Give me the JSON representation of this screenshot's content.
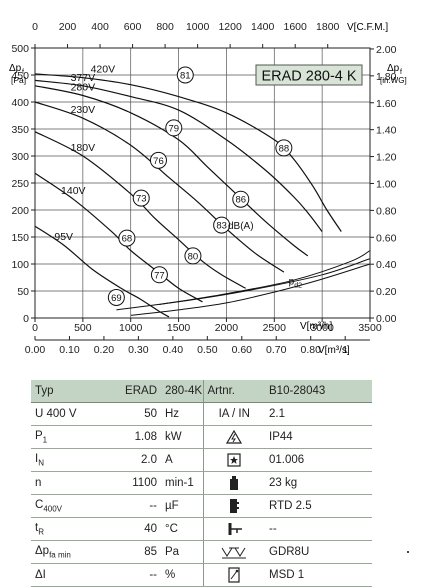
{
  "chart_data": {
    "type": "line",
    "title": "ERAD 280-4 K",
    "x_bottom": {
      "label": "V[m³/h]",
      "ticks": [
        0,
        500,
        1000,
        1500,
        2000,
        2500,
        3000,
        3500
      ],
      "tick_labels": [
        "0",
        "500",
        "1000",
        "1500",
        "2000",
        "2500",
        "3000",
        "3500"
      ],
      "range": [
        0,
        3500
      ]
    },
    "x_bottom2": {
      "label": "V[m³/s]",
      "ticks": [
        0,
        0.1,
        0.2,
        0.3,
        0.4,
        0.5,
        0.6,
        0.7,
        0.8,
        0.9
      ],
      "tick_labels": [
        "0.00",
        "0.10",
        "0.20",
        "0.30",
        "0.40",
        "0.50",
        "0.60",
        "0.70",
        "0.80",
        "1"
      ],
      "range": [
        0,
        0.972
      ]
    },
    "x_top": {
      "label": "V[C.F.M.]",
      "ticks": [
        0,
        200,
        400,
        600,
        800,
        1000,
        1200,
        1400,
        1600,
        1800
      ],
      "tick_labels": [
        "0",
        "200",
        "400",
        "600",
        "800",
        "1000",
        "1200",
        "1400",
        "1600",
        "1800"
      ],
      "range": [
        0,
        2060
      ]
    },
    "y_left": {
      "label_parts": [
        "Δp",
        "f",
        "[Pa]"
      ],
      "ticks": [
        0,
        50,
        100,
        150,
        200,
        250,
        300,
        350,
        400,
        450,
        500
      ],
      "tick_labels": [
        "0",
        "50",
        "100",
        "150",
        "200",
        "250",
        "300",
        "350",
        "400",
        "450",
        "500"
      ],
      "range": [
        0,
        500
      ]
    },
    "y_right": {
      "label_parts": [
        "Δp",
        "f",
        "[in.WG]"
      ],
      "ticks": [
        0,
        0.2,
        0.4,
        0.6,
        0.8,
        1.0,
        1.2,
        1.4,
        1.6,
        1.8,
        2.0
      ],
      "tick_labels": [
        "0.00",
        "0.20",
        "0.40",
        "0.60",
        "0.80",
        "1.00",
        "1.20",
        "1.40",
        "1.60",
        "1.80",
        "2.00"
      ],
      "range": [
        0,
        2.007
      ]
    },
    "grid": true,
    "series": [
      {
        "name": "420V",
        "x": [
          0,
          500,
          1000,
          1500,
          2000,
          2500,
          2700,
          2900,
          3050,
          3200
        ],
        "y": [
          452,
          445,
          432,
          410,
          380,
          330,
          295,
          245,
          200,
          160
        ]
      },
      {
        "name": "377V",
        "x": [
          0,
          500,
          1000,
          1500,
          2000,
          2400,
          2700,
          2850,
          3000
        ],
        "y": [
          440,
          430,
          410,
          385,
          330,
          275,
          225,
          195,
          160
        ]
      },
      {
        "name": "280V",
        "x": [
          0,
          500,
          1000,
          1500,
          1800,
          2100,
          2400,
          2700,
          2850
        ],
        "y": [
          430,
          412,
          380,
          330,
          280,
          230,
          180,
          135,
          115
        ]
      },
      {
        "name": "230V",
        "x": [
          0,
          500,
          1000,
          1400,
          1700,
          2000,
          2300,
          2600
        ],
        "y": [
          400,
          370,
          320,
          260,
          215,
          165,
          120,
          85
        ]
      },
      {
        "name": "180V",
        "x": [
          0,
          500,
          1000,
          1250,
          1500,
          1750,
          1950,
          2200
        ],
        "y": [
          345,
          300,
          230,
          185,
          145,
          105,
          80,
          55
        ]
      },
      {
        "name": "140V",
        "x": [
          0,
          400,
          800,
          1000,
          1250,
          1500,
          1750
        ],
        "y": [
          268,
          220,
          160,
          125,
          90,
          55,
          30
        ]
      },
      {
        "name": "95V",
        "x": [
          0,
          300,
          600,
          900,
          1100,
          1300,
          1400
        ],
        "y": [
          170,
          135,
          90,
          55,
          35,
          12,
          2
        ]
      }
    ],
    "dba_curves": [
      {
        "label": "69",
        "x": [
          850,
          1500,
          2200,
          3000,
          3500
        ],
        "y": [
          15,
          30,
          50,
          80,
          110
        ]
      },
      {
        "label": "77",
        "x": [
          1300,
          2000,
          2700,
          3300,
          3500
        ],
        "y": [
          25,
          45,
          70,
          105,
          125
        ]
      }
    ],
    "pd2_curve": {
      "label": "pd2",
      "x": [
        1000,
        1500,
        2000,
        2500,
        3000,
        3500
      ],
      "y": [
        5,
        15,
        28,
        48,
        72,
        100
      ]
    },
    "noise_markers": [
      {
        "label": "81",
        "x": 1570,
        "y": 450
      },
      {
        "label": "79",
        "x": 1450,
        "y": 352
      },
      {
        "label": "76",
        "x": 1290,
        "y": 292
      },
      {
        "label": "73",
        "x": 1110,
        "y": 222
      },
      {
        "label": "68",
        "x": 960,
        "y": 148
      },
      {
        "label": "69",
        "x": 850,
        "y": 38
      },
      {
        "label": "77",
        "x": 1300,
        "y": 80
      },
      {
        "label": "80",
        "x": 1650,
        "y": 115
      },
      {
        "label": "83",
        "x": 1950,
        "y": 172
      },
      {
        "label": "86",
        "x": 2150,
        "y": 220
      },
      {
        "label": "88",
        "x": 2600,
        "y": 315
      }
    ],
    "annotations": [
      {
        "text": "dB(A)",
        "x": 2150,
        "y": 172
      }
    ]
  },
  "table": {
    "header": [
      "Typ",
      "ERAD",
      "280-4K",
      "Artnr.",
      "B10-28043"
    ],
    "rows": [
      {
        "label": "U 400 V",
        "label_sub": "",
        "value": "50",
        "unit": "Hz",
        "icon": "ia-in-ratio-icon",
        "icon_text": "IA / IN",
        "right": "2.1"
      },
      {
        "label": "P",
        "label_sub": "1",
        "value": "1.08",
        "unit": "kW",
        "icon": "warning-lightning-icon",
        "icon_text": "",
        "right": "IP44"
      },
      {
        "label": "I",
        "label_sub": "N",
        "value": "2.0",
        "unit": "A",
        "icon": "star-box-icon",
        "icon_text": "",
        "right": "01.006"
      },
      {
        "label": "n",
        "label_sub": "",
        "value": "1100",
        "unit": "min-1",
        "icon": "weight-icon",
        "icon_text": "",
        "right": "23 kg"
      },
      {
        "label": "C",
        "label_sub": "400V",
        "value": "--",
        "unit": "µF",
        "icon": "thermal-contact-icon",
        "icon_text": "",
        "right": "RTD 2.5"
      },
      {
        "label": "t",
        "label_sub": "R",
        "value": "40",
        "unit": "°C",
        "icon": "switch-icon",
        "icon_text": "",
        "right": "--"
      },
      {
        "label": "Δp",
        "label_sub": "fa min",
        "value": "85",
        "unit": "Pa",
        "icon": "controller-icon",
        "icon_text": "",
        "right": "GDR8U"
      },
      {
        "label": "ΔI",
        "label_sub": "",
        "value": "--",
        "unit": "%",
        "icon": "motor-switch-icon",
        "icon_text": "",
        "right": "MSD 1"
      }
    ]
  }
}
